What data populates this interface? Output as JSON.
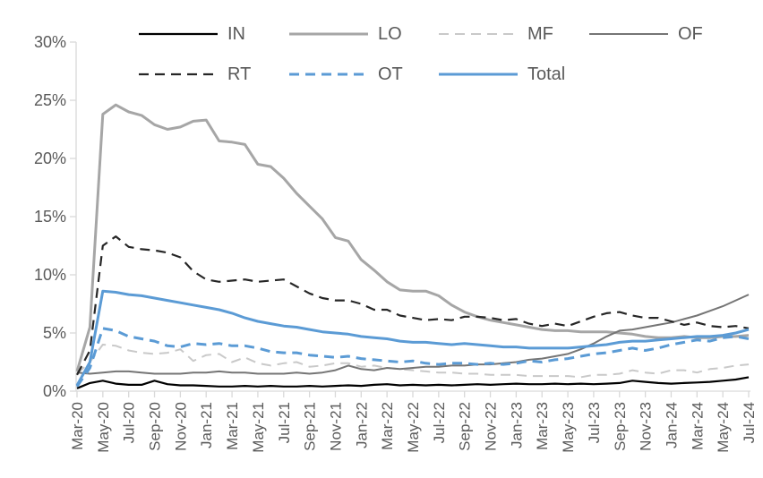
{
  "chart_data": {
    "type": "line",
    "title": "",
    "xlabel": "",
    "ylabel": "",
    "ylim": [
      0,
      30
    ],
    "grid": false,
    "legend_position": "top",
    "axis_color": "#D9D9D9",
    "label_color": "#595959",
    "y_ticks": [
      {
        "value": 0,
        "label": "0%"
      },
      {
        "value": 5,
        "label": "5%"
      },
      {
        "value": 10,
        "label": "10%"
      },
      {
        "value": 15,
        "label": "15%"
      },
      {
        "value": 20,
        "label": "20%"
      },
      {
        "value": 25,
        "label": "25%"
      },
      {
        "value": 30,
        "label": "30%"
      }
    ],
    "x_tick_every": 2,
    "categories": [
      "Mar-20",
      "Apr-20",
      "May-20",
      "Jun-20",
      "Jul-20",
      "Aug-20",
      "Sep-20",
      "Oct-20",
      "Nov-20",
      "Dec-20",
      "Jan-21",
      "Feb-21",
      "Mar-21",
      "Apr-21",
      "May-21",
      "Jun-21",
      "Jul-21",
      "Aug-21",
      "Sep-21",
      "Oct-21",
      "Nov-21",
      "Dec-21",
      "Jan-22",
      "Feb-22",
      "Mar-22",
      "Apr-22",
      "May-22",
      "Jun-22",
      "Jul-22",
      "Aug-22",
      "Sep-22",
      "Oct-22",
      "Nov-22",
      "Dec-22",
      "Jan-23",
      "Feb-23",
      "Mar-23",
      "Apr-23",
      "May-23",
      "Jun-23",
      "Jul-23",
      "Aug-23",
      "Sep-23",
      "Oct-23",
      "Nov-23",
      "Dec-23",
      "Jan-24",
      "Feb-24",
      "Mar-24",
      "Apr-24",
      "May-24",
      "Jun-24",
      "Jul-24"
    ],
    "legend_rows": [
      [
        "IN",
        "LO",
        "MF",
        "OF"
      ],
      [
        "RT",
        "OT",
        "Total"
      ]
    ],
    "series": [
      {
        "name": "IN",
        "color": "#000000",
        "style": "solid",
        "width": 2.2,
        "values": [
          0.25,
          0.7,
          0.9,
          0.65,
          0.55,
          0.55,
          0.9,
          0.6,
          0.5,
          0.5,
          0.45,
          0.4,
          0.4,
          0.45,
          0.4,
          0.45,
          0.4,
          0.4,
          0.45,
          0.4,
          0.45,
          0.5,
          0.45,
          0.55,
          0.6,
          0.5,
          0.55,
          0.5,
          0.55,
          0.5,
          0.55,
          0.6,
          0.55,
          0.6,
          0.65,
          0.6,
          0.6,
          0.65,
          0.6,
          0.65,
          0.6,
          0.65,
          0.7,
          0.9,
          0.8,
          0.7,
          0.65,
          0.7,
          0.75,
          0.8,
          0.9,
          1.0,
          1.2
        ]
      },
      {
        "name": "LO",
        "color": "#A6A6A6",
        "style": "solid",
        "width": 3,
        "values": [
          1.7,
          5.5,
          23.8,
          24.6,
          24.0,
          23.7,
          22.9,
          22.5,
          22.7,
          23.2,
          23.3,
          21.5,
          21.4,
          21.2,
          19.5,
          19.3,
          18.3,
          17.0,
          15.9,
          14.8,
          13.2,
          12.9,
          11.3,
          10.4,
          9.4,
          8.7,
          8.6,
          8.6,
          8.2,
          7.4,
          6.8,
          6.4,
          6.1,
          5.9,
          5.7,
          5.5,
          5.3,
          5.2,
          5.2,
          5.1,
          5.1,
          5.1,
          5.0,
          4.9,
          4.7,
          4.6,
          4.6,
          4.7,
          4.6,
          4.6,
          4.7,
          4.7,
          4.8
        ]
      },
      {
        "name": "MF",
        "color": "#C9C9C9",
        "style": "dashed",
        "width": 2,
        "values": [
          1.5,
          2.5,
          4.0,
          3.9,
          3.5,
          3.3,
          3.2,
          3.3,
          3.6,
          2.6,
          3.1,
          3.2,
          2.5,
          2.9,
          2.4,
          2.2,
          2.4,
          2.5,
          2.1,
          2.2,
          2.4,
          2.4,
          2.1,
          2.2,
          2.0,
          1.9,
          1.8,
          1.7,
          1.6,
          1.6,
          1.5,
          1.5,
          1.4,
          1.4,
          1.4,
          1.3,
          1.3,
          1.3,
          1.3,
          1.2,
          1.4,
          1.4,
          1.5,
          1.8,
          1.6,
          1.5,
          1.8,
          1.8,
          1.6,
          1.9,
          2.0,
          2.2,
          2.3
        ]
      },
      {
        "name": "OF",
        "color": "#757575",
        "style": "solid",
        "width": 2,
        "values": [
          1.6,
          1.5,
          1.6,
          1.7,
          1.7,
          1.6,
          1.5,
          1.5,
          1.5,
          1.6,
          1.6,
          1.7,
          1.6,
          1.6,
          1.5,
          1.5,
          1.5,
          1.6,
          1.5,
          1.6,
          1.8,
          2.2,
          1.9,
          1.8,
          2.0,
          1.9,
          2.0,
          2.1,
          2.1,
          2.2,
          2.2,
          2.3,
          2.3,
          2.4,
          2.5,
          2.7,
          2.8,
          3.0,
          3.2,
          3.6,
          4.1,
          4.7,
          5.2,
          5.3,
          5.5,
          5.7,
          5.9,
          6.2,
          6.5,
          6.9,
          7.3,
          7.8,
          8.3
        ]
      },
      {
        "name": "RT",
        "color": "#262626",
        "style": "dashed",
        "width": 2.2,
        "values": [
          1.4,
          3.5,
          12.5,
          13.3,
          12.4,
          12.2,
          12.1,
          11.9,
          11.5,
          10.3,
          9.6,
          9.4,
          9.5,
          9.6,
          9.4,
          9.5,
          9.6,
          9.0,
          8.4,
          8.0,
          7.8,
          7.8,
          7.5,
          7.0,
          7.0,
          6.5,
          6.3,
          6.1,
          6.2,
          6.1,
          6.4,
          6.4,
          6.3,
          6.1,
          6.2,
          5.8,
          5.6,
          5.8,
          5.6,
          6.0,
          6.4,
          6.7,
          6.8,
          6.5,
          6.3,
          6.3,
          6.0,
          5.7,
          5.9,
          5.6,
          5.5,
          5.6,
          5.4
        ]
      },
      {
        "name": "OT",
        "color": "#5B9BD5",
        "style": "dashed",
        "width": 3,
        "values": [
          0.4,
          2.0,
          5.4,
          5.2,
          4.7,
          4.5,
          4.3,
          3.9,
          3.8,
          4.1,
          4.0,
          4.1,
          3.9,
          3.9,
          3.7,
          3.4,
          3.3,
          3.3,
          3.1,
          3.0,
          2.9,
          3.0,
          2.8,
          2.7,
          2.6,
          2.5,
          2.6,
          2.4,
          2.3,
          2.4,
          2.4,
          2.3,
          2.4,
          2.3,
          2.4,
          2.6,
          2.5,
          2.7,
          2.8,
          3.0,
          3.2,
          3.3,
          3.5,
          3.7,
          3.5,
          3.7,
          4.0,
          4.2,
          4.4,
          4.3,
          4.6,
          4.7,
          4.5
        ]
      },
      {
        "name": "Total",
        "color": "#5B9BD5",
        "style": "solid",
        "width": 3,
        "values": [
          0.5,
          2.5,
          8.6,
          8.5,
          8.3,
          8.2,
          8.0,
          7.8,
          7.6,
          7.4,
          7.2,
          7.0,
          6.7,
          6.3,
          6.0,
          5.8,
          5.6,
          5.5,
          5.3,
          5.1,
          5.0,
          4.9,
          4.7,
          4.6,
          4.5,
          4.3,
          4.2,
          4.2,
          4.1,
          4.0,
          4.1,
          4.0,
          3.9,
          3.8,
          3.8,
          3.7,
          3.7,
          3.7,
          3.7,
          3.8,
          3.9,
          4.0,
          4.2,
          4.3,
          4.3,
          4.4,
          4.5,
          4.6,
          4.7,
          4.7,
          4.8,
          5.0,
          5.3
        ]
      }
    ]
  }
}
